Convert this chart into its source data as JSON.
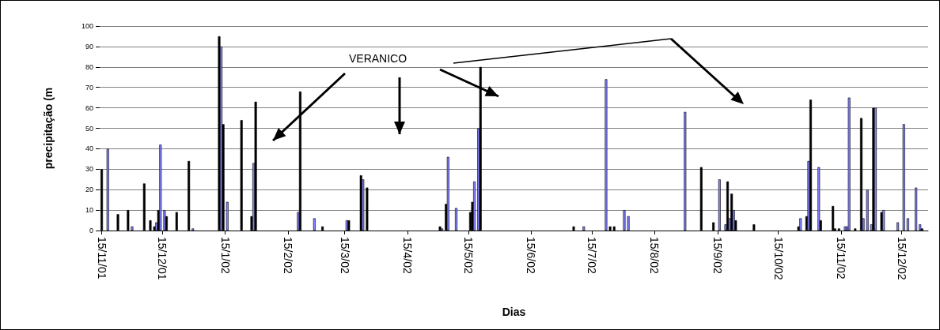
{
  "chart_data": {
    "type": "bar",
    "xlabel": "Dias",
    "ylabel": "precipitação (m",
    "annotations": [
      "VERANICO"
    ],
    "x": [
      "2001-11-15",
      "2001-11-18",
      "2001-11-23",
      "2001-11-28",
      "2001-11-30",
      "2001-12-06",
      "2001-12-09",
      "2001-12-11",
      "2001-12-12",
      "2001-12-13",
      "2001-12-14",
      "2001-12-16",
      "2001-12-17",
      "2001-12-22",
      "2001-12-28",
      "2001-12-30",
      "2002-01-12",
      "2002-01-13",
      "2002-01-14",
      "2002-01-16",
      "2002-01-23",
      "2002-01-28",
      "2002-01-29",
      "2002-01-30",
      "2002-02-20",
      "2002-02-21",
      "2002-02-28",
      "2002-03-04",
      "2002-03-16",
      "2002-03-17",
      "2002-03-23",
      "2002-03-24",
      "2002-03-26",
      "2002-05-01",
      "2002-05-02",
      "2002-05-04",
      "2002-05-05",
      "2002-05-09",
      "2002-05-16",
      "2002-05-17",
      "2002-05-18",
      "2002-05-20",
      "2002-05-21",
      "2002-07-06",
      "2002-07-11",
      "2002-07-22",
      "2002-07-24",
      "2002-07-26",
      "2002-07-31",
      "2002-08-02",
      "2002-08-30",
      "2002-09-07",
      "2002-09-13",
      "2002-09-16",
      "2002-09-19",
      "2002-09-20",
      "2002-09-21",
      "2002-09-22",
      "2002-09-23",
      "2002-09-24",
      "2002-10-03",
      "2002-10-25",
      "2002-10-26",
      "2002-10-29",
      "2002-10-30",
      "2002-10-31",
      "2002-11-04",
      "2002-11-05",
      "2002-11-11",
      "2002-11-12",
      "2002-11-14",
      "2002-11-17",
      "2002-11-18",
      "2002-11-19",
      "2002-11-22",
      "2002-11-25",
      "2002-11-26",
      "2002-11-28",
      "2002-11-30",
      "2002-12-01",
      "2002-12-02",
      "2002-12-05",
      "2002-12-06",
      "2002-12-13",
      "2002-12-16",
      "2002-12-18",
      "2002-12-22",
      "2002-12-24",
      "2002-12-25"
    ],
    "values": [
      30,
      40,
      8,
      10,
      2,
      23,
      5,
      2,
      4,
      10,
      42,
      10,
      7,
      9,
      34,
      1,
      95,
      90,
      52,
      14,
      54,
      7,
      33,
      63,
      9,
      68,
      6,
      2,
      5,
      5,
      27,
      25,
      21,
      2,
      1,
      13,
      36,
      11,
      9,
      14,
      24,
      50,
      80,
      2,
      2,
      74,
      2,
      2,
      10,
      7,
      58,
      31,
      4,
      25,
      3,
      24,
      6,
      18,
      10,
      5,
      3,
      2,
      6,
      7,
      34,
      64,
      31,
      5,
      12,
      1,
      1,
      2,
      2,
      65,
      1,
      55,
      6,
      20,
      3,
      60,
      60,
      9,
      10,
      4,
      52,
      6,
      21,
      3,
      1
    ],
    "colors": [
      "#000000",
      "#8080ff",
      "#000000",
      "#000000",
      "#8080ff",
      "#000000",
      "#000000",
      "#000000",
      "#8080ff",
      "#000000",
      "#8080ff",
      "#8080ff",
      "#000000",
      "#000000",
      "#000000",
      "#8080ff",
      "#000000",
      "#8080ff",
      "#000000",
      "#8080ff",
      "#000000",
      "#000000",
      "#8080ff",
      "#000000",
      "#8080ff",
      "#000000",
      "#8080ff",
      "#000000",
      "#8080ff",
      "#000000",
      "#000000",
      "#8080ff",
      "#000000",
      "#000000",
      "#8080ff",
      "#000000",
      "#8080ff",
      "#8080ff",
      "#000000",
      "#000000",
      "#8080ff",
      "#8080ff",
      "#000000",
      "#000000",
      "#8080ff",
      "#8080ff",
      "#000000",
      "#000000",
      "#8080ff",
      "#8080ff",
      "#8080ff",
      "#000000",
      "#000000",
      "#8080ff",
      "#8080ff",
      "#000000",
      "#8080ff",
      "#000000",
      "#8080ff",
      "#000000",
      "#000000",
      "#000000",
      "#8080ff",
      "#000000",
      "#8080ff",
      "#000000",
      "#8080ff",
      "#000000",
      "#000000",
      "#000000",
      "#000000",
      "#8080ff",
      "#8080ff",
      "#8080ff",
      "#000000",
      "#000000",
      "#8080ff",
      "#8080ff",
      "#8080ff",
      "#000000",
      "#8080ff",
      "#000000",
      "#8080ff",
      "#8080ff",
      "#8080ff",
      "#8080ff",
      "#8080ff",
      "#8080ff",
      "#000000"
    ],
    "xlim": [
      "2001-11-14",
      "2002-12-28"
    ],
    "xticks": [
      {
        "value": "2001-11-15",
        "label": "15/11/01"
      },
      {
        "value": "2001-12-15",
        "label": "15/12/01"
      },
      {
        "value": "2002-01-15",
        "label": "15/1/02"
      },
      {
        "value": "2002-02-15",
        "label": "15/2/02"
      },
      {
        "value": "2002-03-15",
        "label": "15/3/02"
      },
      {
        "value": "2002-04-15",
        "label": "15/4/02"
      },
      {
        "value": "2002-05-15",
        "label": "15/5/02"
      },
      {
        "value": "2002-06-15",
        "label": "15/6/02"
      },
      {
        "value": "2002-07-15",
        "label": "15/7/02"
      },
      {
        "value": "2002-08-15",
        "label": "15/8/02"
      },
      {
        "value": "2002-09-15",
        "label": "15/9/02"
      },
      {
        "value": "2002-10-15",
        "label": "15/10/02"
      },
      {
        "value": "2002-11-15",
        "label": "15/11/02"
      },
      {
        "value": "2002-12-15",
        "label": "15/12/02"
      }
    ],
    "ylim": [
      0,
      100
    ],
    "yticks": [
      0,
      10,
      20,
      30,
      40,
      50,
      60,
      70,
      80,
      90,
      100
    ],
    "grid": "y"
  }
}
